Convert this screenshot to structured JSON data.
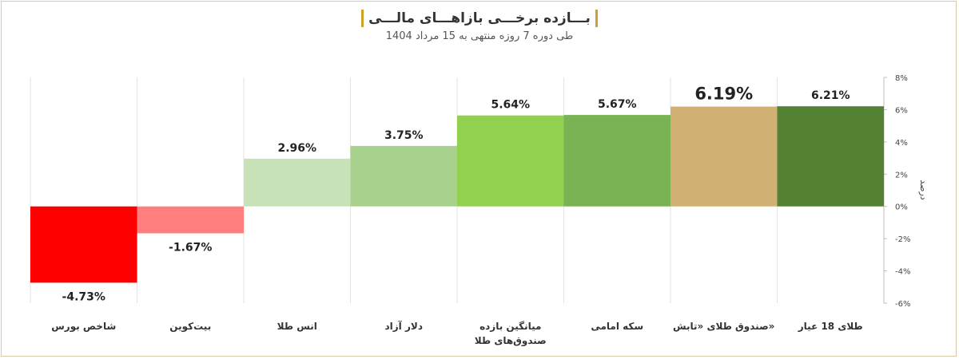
{
  "header": {
    "title": "بـــازده برخـــی بازاهـــای مالـــی",
    "subtitle": "طی دوره 7 روزه منتهی به 15 مرداد 1404"
  },
  "chart_data": {
    "type": "bar",
    "categories": [
      "شاخص بورس",
      "بیت‌کوین",
      "انس طلا",
      "دلار آزاد",
      "میانگین بازده\nصندوق‌های طلا",
      "سکه امامی",
      "صندوق طلای «تابش»",
      "طلای 18 عیار"
    ],
    "values": [
      -4.73,
      -1.67,
      2.96,
      3.75,
      5.64,
      5.67,
      6.19,
      6.21
    ],
    "data_labels": [
      "-4.73%",
      "-1.67%",
      "2.96%",
      "3.75%",
      "5.64%",
      "5.67%",
      "6.19%",
      "6.21%"
    ],
    "colors": [
      "#ff0000",
      "#ff7f7f",
      "#c8e2b8",
      "#a9d18e",
      "#92d050",
      "#7ab354",
      "#d0b073",
      "#548235"
    ],
    "highlight_index": 6,
    "ylabel": "درصد",
    "ylim": [
      -6,
      8
    ],
    "yticks": [
      -6,
      -4,
      -2,
      0,
      2,
      4,
      6,
      8
    ],
    "ytick_labels": [
      "-6%",
      "-4%",
      "-2%",
      "0%",
      "2%",
      "4%",
      "6%",
      "8%"
    ],
    "grid": "vertical-dividers",
    "axis_side": "right"
  }
}
